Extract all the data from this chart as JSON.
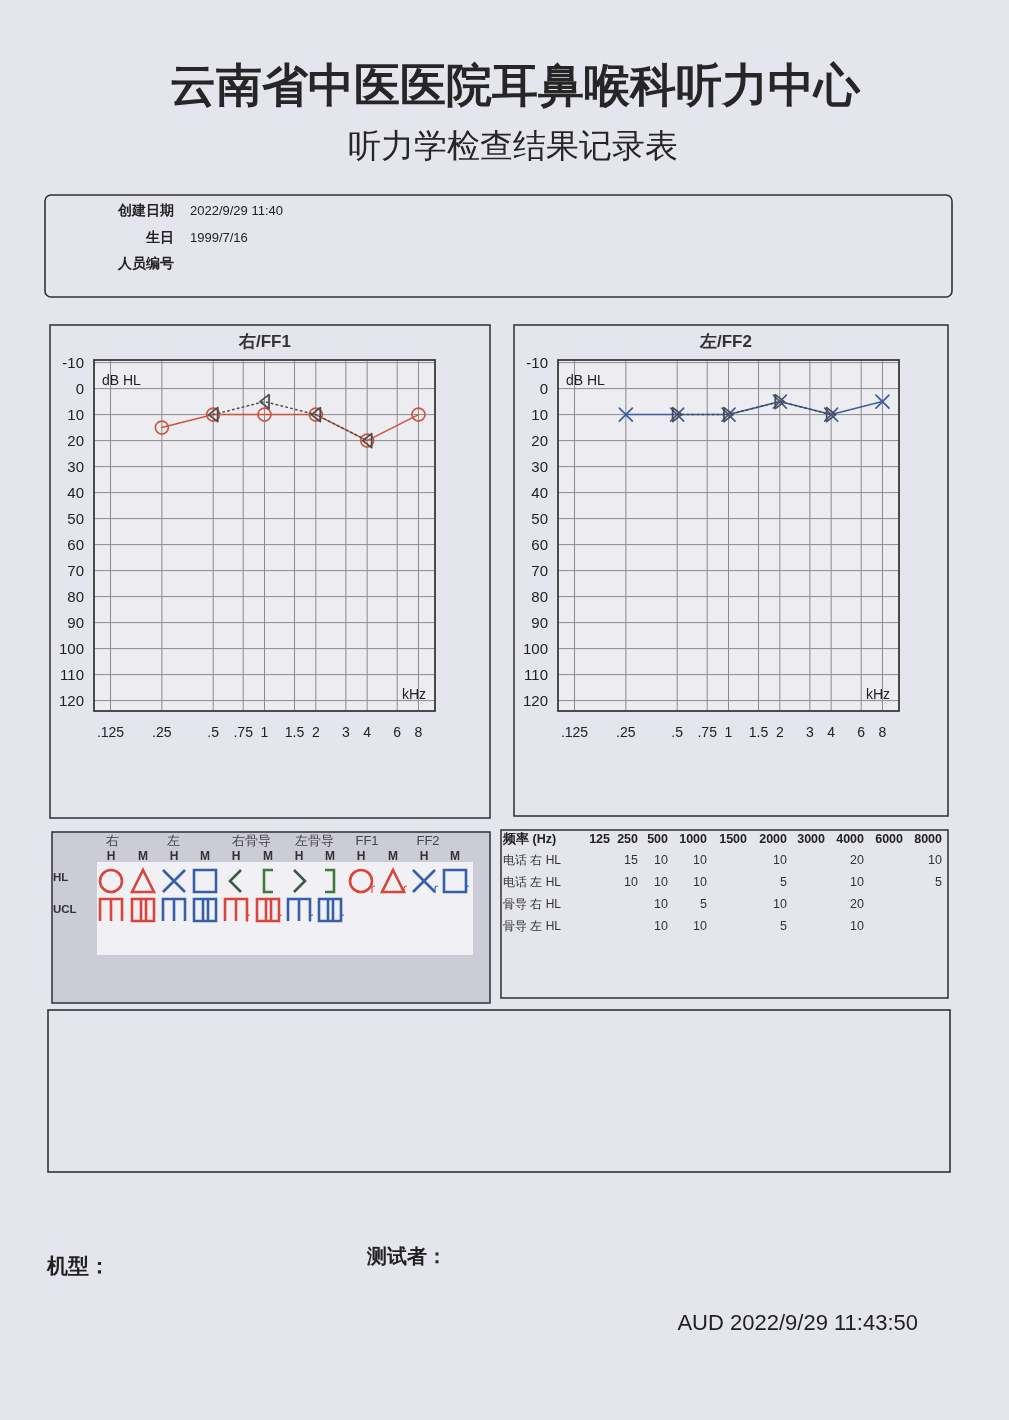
{
  "chart_data": [
    {
      "type": "other",
      "title": "云南省中医医院耳鼻喉科听力中心",
      "subtitle": "听力学检查结果记录表",
      "annotations": [
        "创建日期",
        "2022/9/29 11:40",
        "生日",
        "1999/7/16",
        "人员编号"
      ]
    },
    {
      "type": "line",
      "title": "右/FF1",
      "xlabel": "kHz",
      "ylabel": "dB HL",
      "log": "x",
      "xlim": [
        0.1,
        10
      ],
      "xticks": [
        {
          "value": 0.125,
          "label": ".125"
        },
        {
          "value": 0.25,
          "label": ".25"
        },
        {
          "value": 0.5,
          "label": ".5"
        },
        {
          "value": 0.75,
          "label": ".75"
        },
        1,
        1.5,
        2,
        3,
        4,
        6,
        8
      ],
      "ylim": [
        124,
        -11
      ],
      "yticks": [
        -10,
        0,
        10,
        20,
        30,
        40,
        50,
        60,
        70,
        80,
        90,
        100,
        110,
        120
      ],
      "grid": true,
      "series": [
        {
          "color": "#cc5540",
          "marker": "circle",
          "line_style": "solid",
          "x": [
            0.25,
            0.5,
            1,
            2,
            4,
            8
          ],
          "values": [
            15,
            10,
            10,
            10,
            20,
            10
          ]
        },
        {
          "color": "#4d4d4d",
          "marker": "triangle",
          "line_style": "dotted",
          "x": [
            0.5,
            1,
            2,
            4
          ],
          "values": [
            10,
            5,
            10,
            20
          ]
        }
      ]
    },
    {
      "type": "line",
      "title": "左/FF2",
      "xlabel": "kHz",
      "ylabel": "dB HL",
      "log": "x",
      "xlim": [
        0.1,
        10
      ],
      "xticks": [
        {
          "value": 0.125,
          "label": ".125"
        },
        {
          "value": 0.25,
          "label": ".25"
        },
        {
          "value": 0.5,
          "label": ".5"
        },
        {
          "value": 0.75,
          "label": ".75"
        },
        1,
        1.5,
        2,
        3,
        4,
        6,
        8
      ],
      "ylim": [
        124,
        -11
      ],
      "yticks": [
        -10,
        0,
        10,
        20,
        30,
        40,
        50,
        60,
        70,
        80,
        90,
        100,
        110,
        120
      ],
      "grid": true,
      "series": [
        {
          "color": "#3d5f9e",
          "marker": "cross",
          "line_style": "solid",
          "x": [
            0.25,
            0.5,
            1,
            2,
            4,
            8
          ],
          "values": [
            10,
            10,
            10,
            5,
            10,
            5
          ]
        },
        {
          "color": "#4d4d4d",
          "marker": "triangle",
          "line_style": "dotted",
          "x": [
            0.5,
            1,
            2,
            4
          ],
          "values": [
            10,
            10,
            5,
            10
          ]
        }
      ]
    },
    {
      "type": "other",
      "annotations": [
        "右",
        "左",
        "右骨导",
        "左骨导",
        "FF1",
        "FF2",
        "H",
        "M",
        "H",
        "M",
        "H",
        "M",
        "H",
        "M",
        "H",
        "M",
        "H",
        "M",
        "HL",
        "UCL"
      ]
    },
    {
      "type": "other",
      "xlabel": "频率 (Hz)",
      "categories": [
        "125",
        "250",
        "500",
        "1000",
        "1500",
        "2000",
        "3000",
        "4000",
        "6000",
        "8000"
      ],
      "data_labels": true,
      "series": [
        {
          "name": "电话 右 HL",
          "values": [
            null,
            15,
            10,
            10,
            null,
            10,
            null,
            20,
            null,
            10
          ]
        },
        {
          "name": "电话 左 HL",
          "values": [
            null,
            10,
            10,
            10,
            null,
            5,
            null,
            10,
            null,
            5
          ]
        },
        {
          "name": "骨导 右 HL",
          "values": [
            null,
            null,
            10,
            5,
            null,
            10,
            null,
            20,
            null,
            null
          ]
        },
        {
          "name": "骨导 左 HL",
          "values": [
            null,
            null,
            10,
            10,
            null,
            5,
            null,
            10,
            null,
            null
          ]
        }
      ]
    },
    {
      "type": "other",
      "annotations": [
        "机型：",
        "测试者：",
        "AUD 2022/9/29 11:43:50"
      ]
    }
  ]
}
